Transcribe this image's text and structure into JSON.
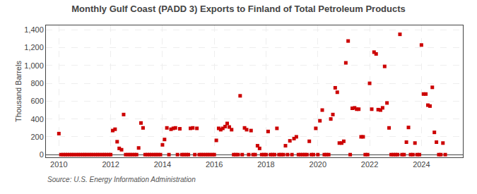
{
  "chart_data": {
    "type": "scatter",
    "title": "Monthly Gulf Coast (PADD 3) Exports to Finland of Total Petroleum Products",
    "ylabel": "Thousand Barrels",
    "annotations": [
      "Source: U.S. Energy Information Administration"
    ],
    "color": "#cc0000",
    "marker": "square",
    "grid": true,
    "xlim": [
      2009.5,
      2025.6
    ],
    "xticks": [
      2010,
      2012,
      2014,
      2016,
      2018,
      2020,
      2022,
      2024
    ],
    "ylim": [
      -30,
      1450
    ],
    "yticks": [
      0,
      200,
      400,
      600,
      800,
      {
        "value": 1000,
        "label": "1,000"
      },
      {
        "value": 1200,
        "label": "1,200"
      },
      {
        "value": 1400,
        "label": "1,400"
      }
    ],
    "x": [
      2010.0,
      2010.08,
      2010.17,
      2010.25,
      2010.33,
      2010.42,
      2010.5,
      2010.58,
      2010.67,
      2010.75,
      2010.83,
      2010.92,
      2011.0,
      2011.08,
      2011.17,
      2011.25,
      2011.33,
      2011.42,
      2011.5,
      2011.58,
      2011.67,
      2011.75,
      2011.83,
      2011.92,
      2012.0,
      2012.08,
      2012.17,
      2012.25,
      2012.33,
      2012.42,
      2012.5,
      2012.58,
      2012.67,
      2012.75,
      2012.83,
      2012.92,
      2013.0,
      2013.08,
      2013.17,
      2013.25,
      2013.33,
      2013.42,
      2013.5,
      2013.58,
      2013.67,
      2013.75,
      2013.83,
      2013.92,
      2014.0,
      2014.08,
      2014.17,
      2014.25,
      2014.33,
      2014.42,
      2014.5,
      2014.58,
      2014.67,
      2014.75,
      2014.83,
      2014.92,
      2015.0,
      2015.08,
      2015.17,
      2015.25,
      2015.33,
      2015.42,
      2015.5,
      2015.58,
      2015.67,
      2015.75,
      2015.83,
      2015.92,
      2016.0,
      2016.08,
      2016.17,
      2016.25,
      2016.33,
      2016.42,
      2016.5,
      2016.58,
      2016.67,
      2016.75,
      2016.83,
      2016.92,
      2017.0,
      2017.08,
      2017.17,
      2017.25,
      2017.33,
      2017.42,
      2017.5,
      2017.58,
      2017.67,
      2017.75,
      2017.83,
      2017.92,
      2018.0,
      2018.08,
      2018.17,
      2018.25,
      2018.33,
      2018.42,
      2018.5,
      2018.58,
      2018.67,
      2018.75,
      2018.83,
      2018.92,
      2019.0,
      2019.08,
      2019.17,
      2019.25,
      2019.33,
      2019.42,
      2019.5,
      2019.58,
      2019.67,
      2019.75,
      2019.83,
      2019.92,
      2020.0,
      2020.08,
      2020.17,
      2020.25,
      2020.33,
      2020.42,
      2020.5,
      2020.58,
      2020.67,
      2020.75,
      2020.83,
      2020.92,
      2021.0,
      2021.08,
      2021.17,
      2021.25,
      2021.33,
      2021.42,
      2021.5,
      2021.58,
      2021.67,
      2021.75,
      2021.83,
      2021.92,
      2022.0,
      2022.08,
      2022.17,
      2022.25,
      2022.33,
      2022.42,
      2022.5,
      2022.58,
      2022.67,
      2022.75,
      2022.83,
      2022.92,
      2023.0,
      2023.08,
      2023.17,
      2023.25,
      2023.33,
      2023.42,
      2023.5,
      2023.58,
      2023.67,
      2023.75,
      2023.83,
      2023.92,
      2024.0,
      2024.08,
      2024.17,
      2024.25,
      2024.33,
      2024.42,
      2024.5,
      2024.58,
      2024.67,
      2024.75,
      2024.83,
      2024.92
    ],
    "values": [
      236,
      0,
      0,
      0,
      0,
      0,
      0,
      0,
      0,
      0,
      0,
      0,
      0,
      0,
      0,
      0,
      0,
      0,
      0,
      0,
      0,
      0,
      0,
      0,
      0,
      270,
      285,
      145,
      70,
      55,
      450,
      0,
      0,
      0,
      0,
      0,
      0,
      75,
      355,
      300,
      0,
      0,
      0,
      0,
      0,
      0,
      0,
      0,
      110,
      170,
      300,
      0,
      285,
      295,
      300,
      0,
      290,
      0,
      0,
      0,
      0,
      295,
      300,
      0,
      295,
      0,
      0,
      0,
      0,
      0,
      0,
      0,
      0,
      160,
      295,
      280,
      295,
      315,
      350,
      310,
      280,
      0,
      0,
      0,
      660,
      0,
      300,
      280,
      0,
      270,
      0,
      0,
      100,
      70,
      0,
      0,
      0,
      260,
      0,
      0,
      0,
      295,
      0,
      0,
      0,
      100,
      0,
      155,
      0,
      180,
      200,
      0,
      0,
      0,
      0,
      0,
      150,
      0,
      0,
      295,
      0,
      380,
      500,
      0,
      0,
      0,
      400,
      450,
      750,
      700,
      130,
      130,
      150,
      1030,
      1275,
      0,
      520,
      525,
      510,
      510,
      200,
      200,
      0,
      0,
      800,
      510,
      1150,
      1130,
      505,
      500,
      525,
      990,
      580,
      300,
      0,
      0,
      0,
      0,
      1350,
      0,
      0,
      140,
      305,
      0,
      0,
      130,
      0,
      0,
      1230,
      680,
      680,
      555,
      545,
      755,
      250,
      140,
      0,
      0,
      130,
      0
    ]
  }
}
